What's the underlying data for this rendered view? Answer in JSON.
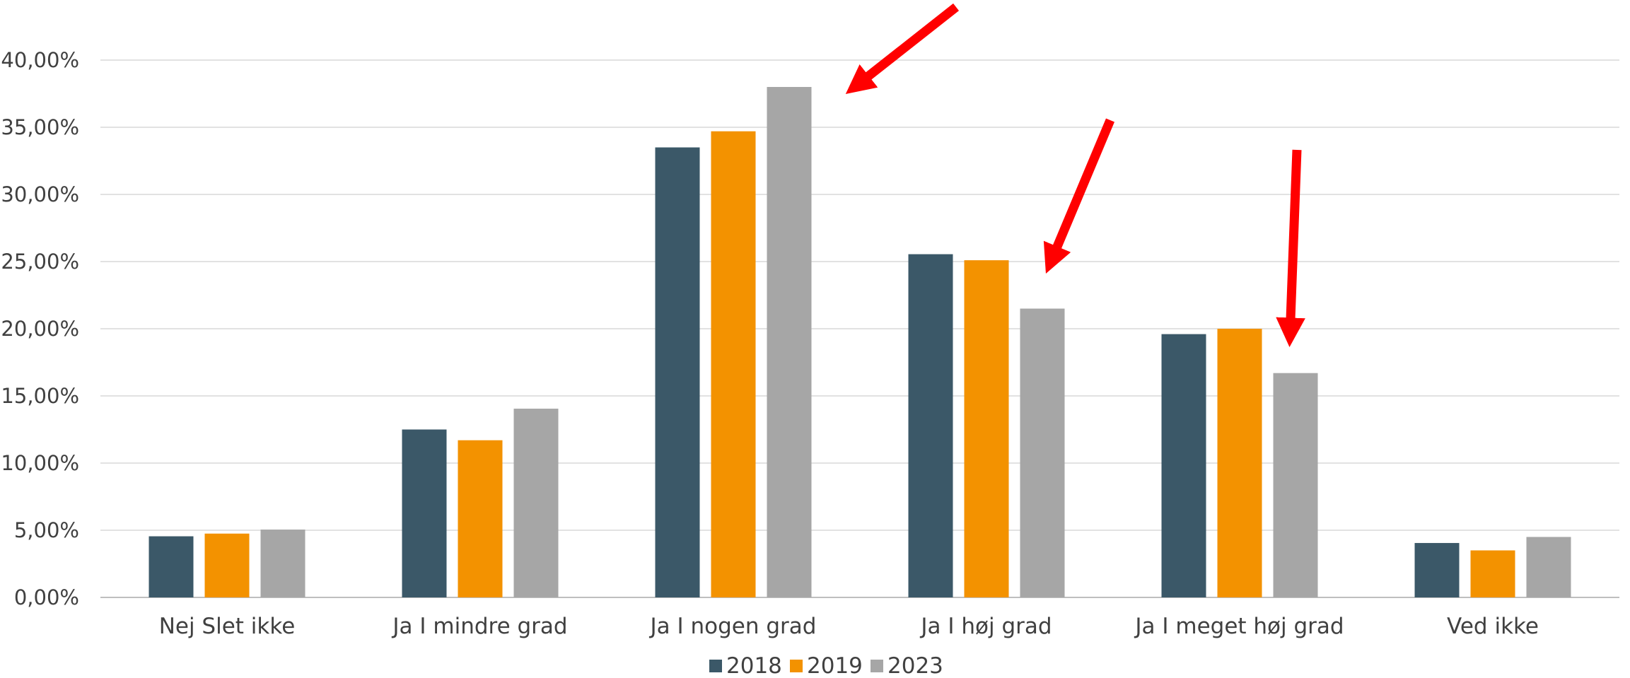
{
  "chart_data": {
    "type": "bar",
    "categories": [
      "Nej Slet ikke",
      "Ja I mindre grad",
      "Ja I nogen grad",
      "Ja I høj grad",
      "Ja I meget høj grad",
      "Ved ikke"
    ],
    "series": [
      {
        "name": "2018",
        "color": "#3B5868",
        "values": [
          4.55,
          12.5,
          33.5,
          25.55,
          19.6,
          4.05
        ]
      },
      {
        "name": "2019",
        "color": "#F39200",
        "values": [
          4.75,
          11.7,
          34.7,
          25.1,
          20.0,
          3.5
        ]
      },
      {
        "name": "2023",
        "color": "#A6A6A6",
        "values": [
          5.05,
          14.05,
          38.0,
          21.5,
          16.7,
          4.5
        ]
      }
    ],
    "y_ticks": [
      "0,00%",
      "5,00%",
      "10,00%",
      "15,00%",
      "20,00%",
      "25,00%",
      "30,00%",
      "35,00%",
      "40,00%"
    ],
    "ylim": [
      0,
      40
    ],
    "grid": true,
    "legend_position": "bottom",
    "annotations": [
      {
        "type": "arrow",
        "color": "#FF0000",
        "points_to": "Ja I nogen grad / 2023"
      },
      {
        "type": "arrow",
        "color": "#FF0000",
        "points_to": "Ja I høj grad / 2023"
      },
      {
        "type": "arrow",
        "color": "#FF0000",
        "points_to": "Ja I meget høj grad / 2023"
      }
    ]
  }
}
